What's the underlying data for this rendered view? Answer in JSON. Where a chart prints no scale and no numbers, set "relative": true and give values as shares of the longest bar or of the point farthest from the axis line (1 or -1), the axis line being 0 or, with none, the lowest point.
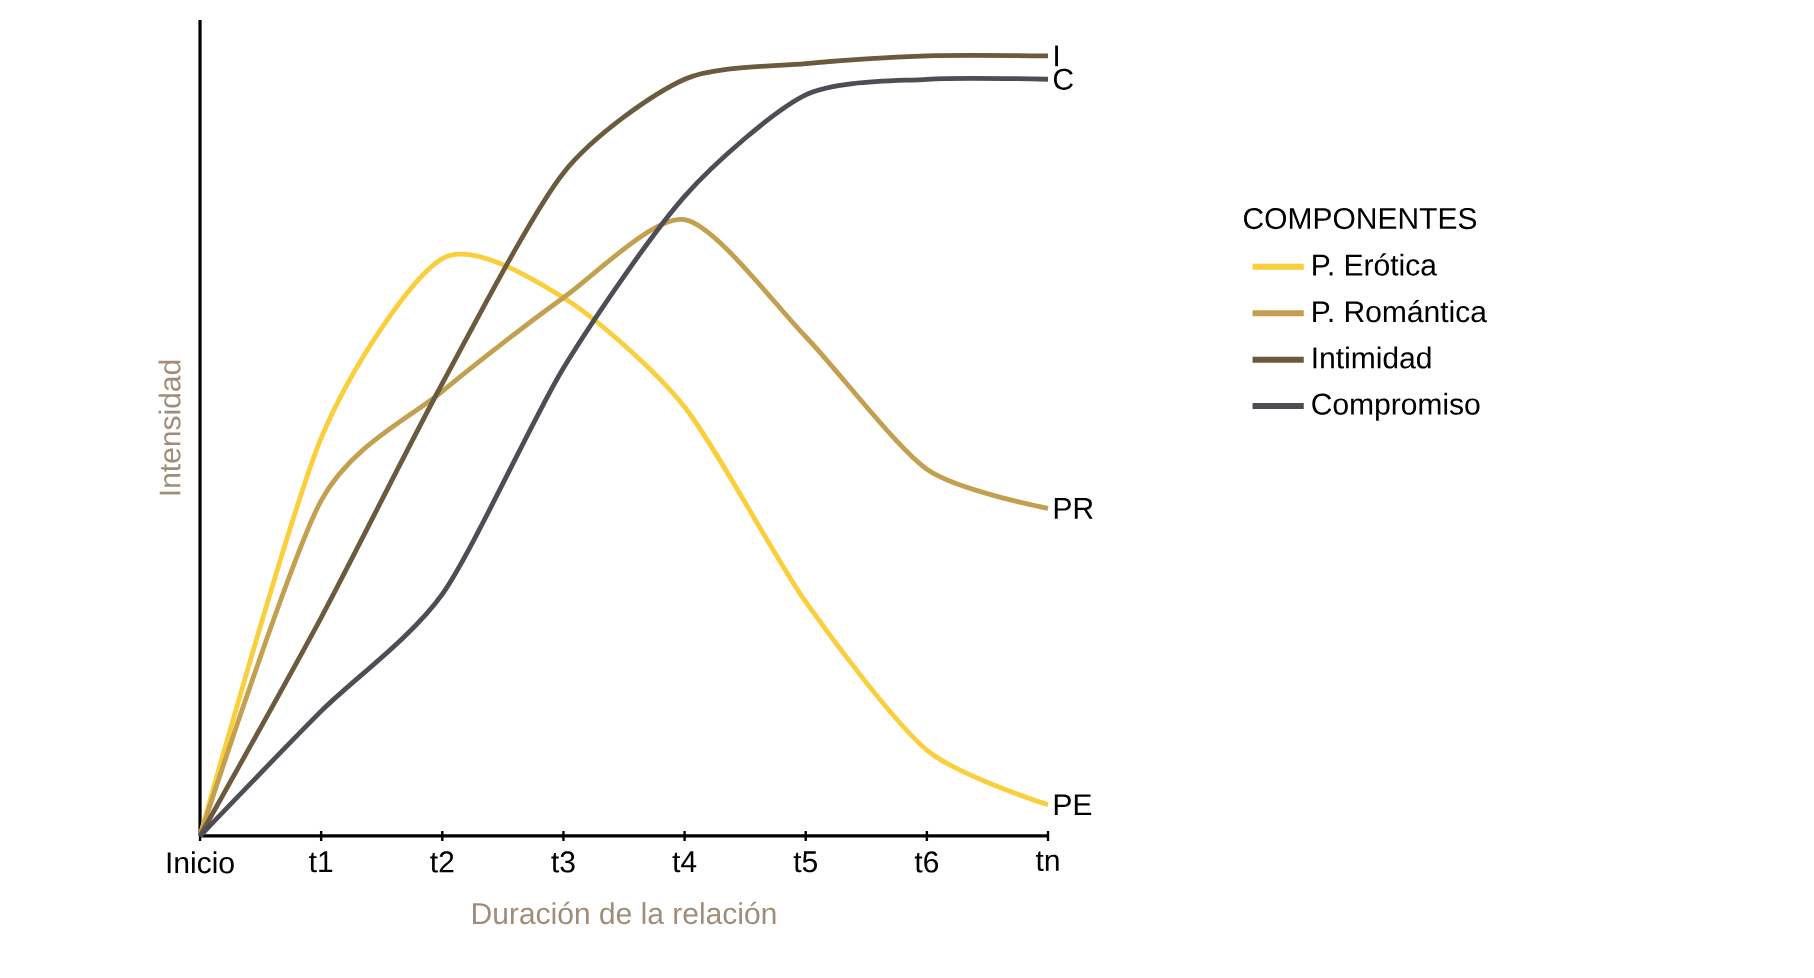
{
  "chart_data": {
    "type": "line",
    "relative": true,
    "xlabel": "Duración de la relación",
    "ylabel": "Intensidad",
    "legend_title": "COMPONENTES",
    "legend": "right",
    "marker": "none",
    "line_style": "solid",
    "categories": [
      "Inicio",
      "t1",
      "t2",
      "t3",
      "t4",
      "t5",
      "t6",
      "tn"
    ],
    "series": [
      {
        "name": "P. Erótica",
        "color": "#fbcf3c",
        "values": [
          0,
          0.51,
          0.74,
          0.69,
          0.55,
          0.3,
          0.11,
          0.04
        ]
      },
      {
        "name": "P. Romántica",
        "color": "#c2a050",
        "values": [
          0,
          0.43,
          0.57,
          0.69,
          0.79,
          0.64,
          0.47,
          0.42
        ]
      },
      {
        "name": "Intimidad",
        "color": "#6b5a3e",
        "values": [
          0,
          0.28,
          0.58,
          0.85,
          0.97,
          0.99,
          1.0,
          1.0
        ]
      },
      {
        "name": "Compromiso",
        "color": "#4d4d55",
        "values": [
          0,
          0.16,
          0.31,
          0.6,
          0.82,
          0.95,
          0.97,
          0.97
        ]
      }
    ],
    "annotations": [
      {
        "text": "I",
        "x": "tn",
        "y": 1.0
      },
      {
        "text": "C",
        "x": "tn",
        "y": 0.97
      },
      {
        "text": "PR",
        "x": "tn",
        "y": 0.42
      },
      {
        "text": "PE",
        "x": "tn",
        "y": 0.04
      }
    ]
  }
}
